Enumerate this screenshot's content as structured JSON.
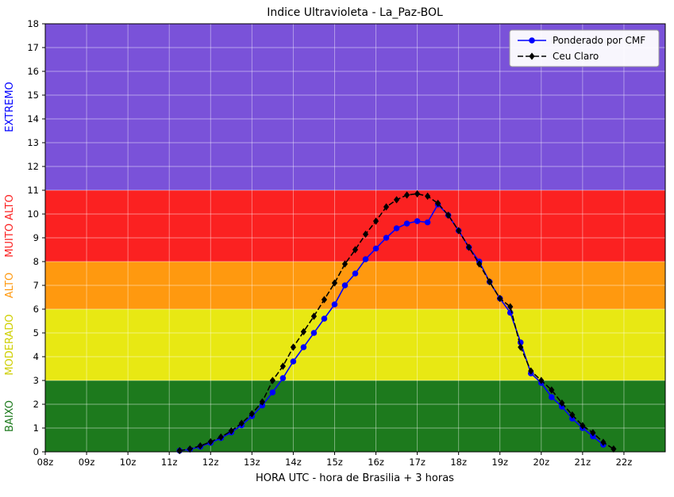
{
  "figure": {
    "background": "#ffffff"
  },
  "chart_data": {
    "type": "line",
    "title": "Indice Ultravioleta - La_Paz-BOL",
    "xlabel": "HORA UTC - hora de Brasilia + 3 horas",
    "ylabel": "",
    "xlim": [
      8,
      23
    ],
    "ylim": [
      0,
      18
    ],
    "grid": true,
    "grid_color": "rgba(255,255,255,0.45)",
    "x_ticks": [
      {
        "value": 8,
        "label": "08z"
      },
      {
        "value": 9,
        "label": "09z"
      },
      {
        "value": 10,
        "label": "10z"
      },
      {
        "value": 11,
        "label": "11z"
      },
      {
        "value": 12,
        "label": "12z"
      },
      {
        "value": 13,
        "label": "13z"
      },
      {
        "value": 14,
        "label": "14z"
      },
      {
        "value": 15,
        "label": "15z"
      },
      {
        "value": 16,
        "label": "16z"
      },
      {
        "value": 17,
        "label": "17z"
      },
      {
        "value": 18,
        "label": "18z"
      },
      {
        "value": 19,
        "label": "19z"
      },
      {
        "value": 20,
        "label": "20z"
      },
      {
        "value": 21,
        "label": "21z"
      },
      {
        "value": 22,
        "label": "22z"
      }
    ],
    "y_ticks": [
      0,
      1,
      2,
      3,
      4,
      5,
      6,
      7,
      8,
      9,
      10,
      11,
      12,
      13,
      14,
      15,
      16,
      17,
      18
    ],
    "bands": [
      {
        "label": "BAIXO",
        "from": 0,
        "to": 3,
        "color": "#1d7a1d",
        "label_color": "#1d7a1d"
      },
      {
        "label": "MODERADO",
        "from": 3,
        "to": 6,
        "color": "#e8e813",
        "label_color": "#cfcf00"
      },
      {
        "label": "ALTO",
        "from": 6,
        "to": 8,
        "color": "#ff990f",
        "label_color": "#ff990f"
      },
      {
        "label": "MUITO ALTO",
        "from": 8,
        "to": 11,
        "color": "#fb2121",
        "label_color": "#fb2121"
      },
      {
        "label": "EXTREMO",
        "from": 11,
        "to": 18,
        "color": "#7a52d9",
        "label_color": "#0000ff"
      }
    ],
    "legend": {
      "position": "upper right",
      "border_color": "#9a9a9a",
      "background": "#ffffff"
    },
    "series": [
      {
        "name": "Ponderado por CMF",
        "color": "#0000ff",
        "line_style": "solid",
        "marker": "circle",
        "x": [
          11.25,
          11.5,
          11.75,
          12.0,
          12.25,
          12.5,
          12.75,
          13.0,
          13.25,
          13.5,
          13.75,
          14.0,
          14.25,
          14.5,
          14.75,
          15.0,
          15.25,
          15.5,
          15.75,
          16.0,
          16.25,
          16.5,
          16.75,
          17.0,
          17.25,
          17.5,
          17.75,
          18.0,
          18.25,
          18.5,
          18.75,
          19.0,
          19.25,
          19.5,
          19.75,
          20.0,
          20.25,
          20.5,
          20.75,
          21.0,
          21.25,
          21.5
        ],
        "values": [
          0.05,
          0.1,
          0.22,
          0.38,
          0.58,
          0.82,
          1.12,
          1.5,
          1.95,
          2.5,
          3.1,
          3.8,
          4.4,
          5.0,
          5.6,
          6.2,
          7.0,
          7.5,
          8.1,
          8.55,
          9.0,
          9.4,
          9.6,
          9.7,
          9.65,
          10.4,
          9.95,
          9.3,
          8.6,
          8.0,
          7.15,
          6.45,
          5.85,
          4.6,
          3.3,
          2.9,
          2.3,
          1.9,
          1.4,
          1.0,
          0.65,
          0.3
        ]
      },
      {
        "name": "Ceu Claro",
        "color": "#000000",
        "line_style": "dashed",
        "marker": "diamond",
        "x": [
          11.25,
          11.5,
          11.75,
          12.0,
          12.25,
          12.5,
          12.75,
          13.0,
          13.25,
          13.5,
          13.75,
          14.0,
          14.25,
          14.5,
          14.75,
          15.0,
          15.25,
          15.5,
          15.75,
          16.0,
          16.25,
          16.5,
          16.75,
          17.0,
          17.25,
          17.5,
          17.75,
          18.0,
          18.25,
          18.5,
          18.75,
          19.0,
          19.25,
          19.5,
          19.75,
          20.0,
          20.25,
          20.5,
          20.75,
          21.0,
          21.25,
          21.5,
          21.75
        ],
        "values": [
          0.05,
          0.12,
          0.25,
          0.42,
          0.62,
          0.88,
          1.2,
          1.6,
          2.1,
          3.0,
          3.6,
          4.4,
          5.05,
          5.7,
          6.4,
          7.1,
          7.9,
          8.5,
          9.15,
          9.7,
          10.3,
          10.6,
          10.8,
          10.85,
          10.75,
          10.45,
          9.95,
          9.3,
          8.6,
          7.9,
          7.15,
          6.45,
          6.1,
          4.4,
          3.4,
          3.0,
          2.6,
          2.05,
          1.55,
          1.1,
          0.8,
          0.4,
          0.12
        ]
      }
    ]
  }
}
